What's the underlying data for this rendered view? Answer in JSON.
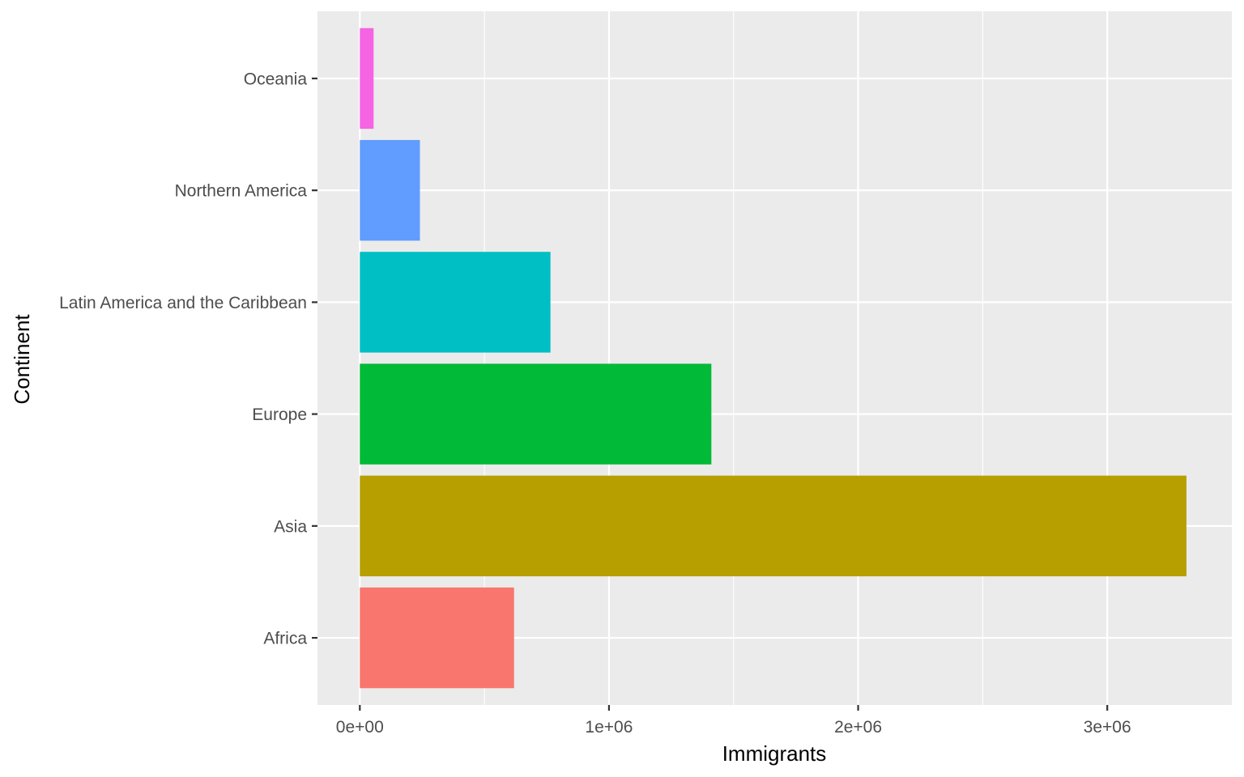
{
  "chart_data": {
    "type": "bar",
    "orientation": "horizontal",
    "title": "",
    "xlabel": "Immigrants",
    "ylabel": "Continent",
    "xlim": [
      -170000,
      3500000
    ],
    "x_ticks": [
      {
        "value": 0,
        "label": "0e+00"
      },
      {
        "value": 1000000,
        "label": "1e+06"
      },
      {
        "value": 2000000,
        "label": "2e+06"
      },
      {
        "value": 3000000,
        "label": "3e+06"
      }
    ],
    "x_minor_ticks": [
      500000,
      1500000,
      2500000
    ],
    "grid": true,
    "legend": "none",
    "categories": [
      "Africa",
      "Asia",
      "Europe",
      "Latin America and the Caribbean",
      "Northern America",
      "Oceania"
    ],
    "values": [
      618948,
      3317794,
      1410947,
      765148,
      241142,
      55174
    ],
    "colors": [
      "#F8766D",
      "#B79F00",
      "#00BA38",
      "#00BFC4",
      "#619CFF",
      "#F564E3"
    ],
    "panel_background": "#EBEBEB",
    "grid_color": "#FFFFFF"
  }
}
